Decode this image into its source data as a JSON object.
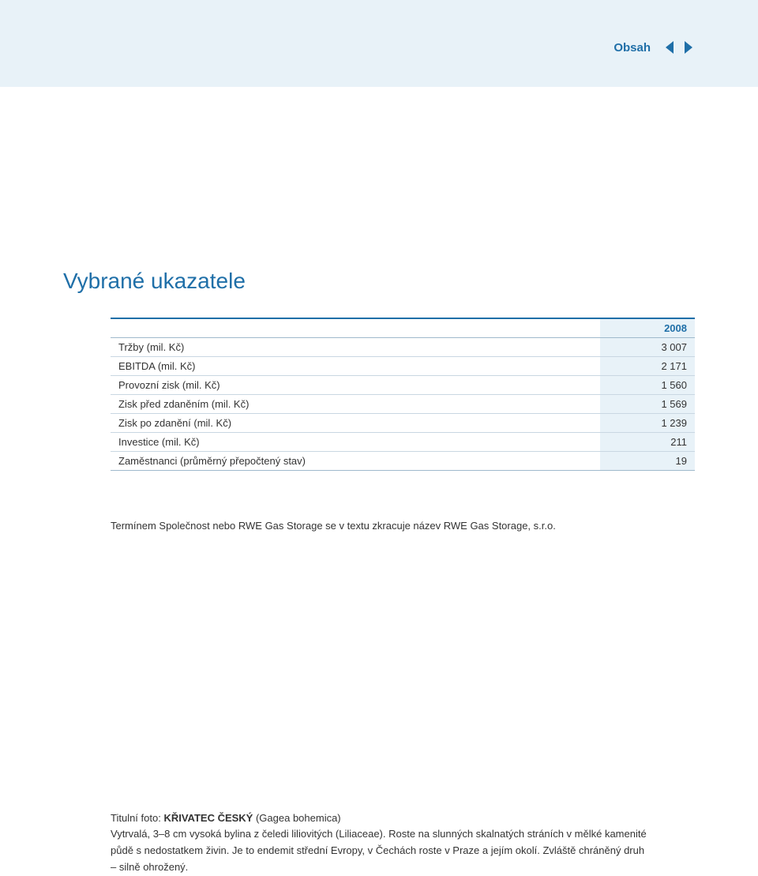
{
  "colors": {
    "topbar_bg": "#e8f2f8",
    "accent": "#1f6fa8",
    "rule": "#c9d7e2",
    "rule_strong": "#9fb9cc",
    "text": "#333333",
    "value_bg": "#e8f2f8"
  },
  "nav": {
    "label": "Obsah"
  },
  "title": "Vybrané ukazatele",
  "table": {
    "header_year": "2008",
    "rows": [
      {
        "label": "Tržby (mil. Kč)",
        "value": "3 007"
      },
      {
        "label": "EBITDA (mil. Kč)",
        "value": "2 171"
      },
      {
        "label": "Provozní zisk (mil. Kč)",
        "value": "1 560"
      },
      {
        "label": "Zisk před zdaněním (mil. Kč)",
        "value": "1 569"
      },
      {
        "label": "Zisk po zdanění (mil. Kč)",
        "value": "1 239"
      },
      {
        "label": "Investice (mil. Kč)",
        "value": "211"
      },
      {
        "label": "Zaměstnanci (průměrný přepočtený stav)",
        "value": "19"
      }
    ]
  },
  "note": "Termínem Společnost nebo RWE Gas Storage se v textu zkracuje název RWE Gas Storage, s.r.o.",
  "footnote": {
    "lead": "Titulní foto: ",
    "bold": "KŘIVATEC ČESKÝ",
    "after_bold": " (Gagea bohemica)",
    "body": "Vytrvalá, 3–8 cm vysoká bylina z čeledi liliovitých (Liliaceae). Roste na slunných skalnatých stráních v mělké kamenité půdě s nedostatkem živin. Je to endemit střední Evropy, v Čechách roste v Praze a jejím okolí. Zvláště chráněný druh – silně ohrožený."
  }
}
